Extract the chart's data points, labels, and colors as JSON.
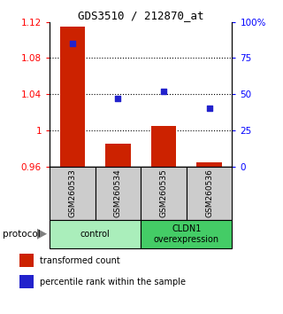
{
  "title": "GDS3510 / 212870_at",
  "samples": [
    "GSM260533",
    "GSM260534",
    "GSM260535",
    "GSM260536"
  ],
  "bar_values": [
    1.115,
    0.985,
    1.005,
    0.965
  ],
  "dot_values": [
    85,
    47,
    52,
    40
  ],
  "ylim_left": [
    0.96,
    1.12
  ],
  "ylim_right": [
    0,
    100
  ],
  "yticks_left": [
    0.96,
    1.0,
    1.04,
    1.08,
    1.12
  ],
  "ytick_labels_left": [
    "0.96",
    "1",
    "1.04",
    "1.08",
    "1.12"
  ],
  "yticks_right": [
    0,
    25,
    50,
    75,
    100
  ],
  "ytick_labels_right": [
    "0",
    "25",
    "50",
    "75",
    "100%"
  ],
  "bar_color": "#CC2200",
  "dot_color": "#2222CC",
  "bar_baseline": 0.96,
  "groups": [
    {
      "label": "control",
      "samples": [
        0,
        1
      ],
      "color": "#AAEEBB"
    },
    {
      "label": "CLDN1\noverexpression",
      "samples": [
        2,
        3
      ],
      "color": "#44CC66"
    }
  ],
  "group_box_color": "#CCCCCC",
  "legend_bar_label": "transformed count",
  "legend_dot_label": "percentile rank within the sample",
  "protocol_label": "protocol"
}
